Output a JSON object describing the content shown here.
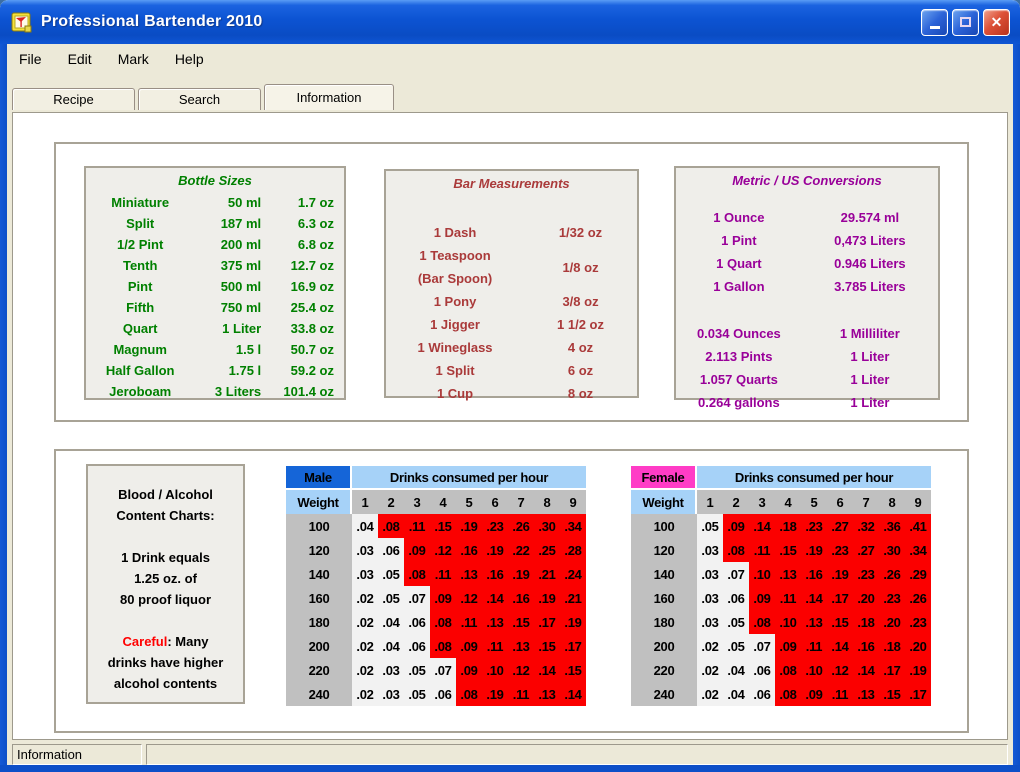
{
  "window": {
    "title": "Professional Bartender 2010",
    "controls": {
      "minimize": "minimize",
      "maximize": "maximize",
      "close": "close"
    }
  },
  "menu_bar": {
    "items": [
      "File",
      "Edit",
      "Mark",
      "Help"
    ]
  },
  "tab_bar": {
    "tabs": [
      {
        "label": "Recipe",
        "active": false
      },
      {
        "label": "Search",
        "active": false
      },
      {
        "label": "Information",
        "active": true
      }
    ]
  },
  "bottle_sizes": {
    "title": "Bottle Sizes",
    "text_color": "#008000",
    "rows": [
      [
        "Miniature",
        "50 ml",
        "1.7 oz"
      ],
      [
        "Split",
        "187 ml",
        "6.3 oz"
      ],
      [
        "1/2 Pint",
        "200 ml",
        "6.8 oz"
      ],
      [
        "Tenth",
        "375 ml",
        "12.7 oz"
      ],
      [
        "Pint",
        "500 ml",
        "16.9 oz"
      ],
      [
        "Fifth",
        "750 ml",
        "25.4 oz"
      ],
      [
        "Quart",
        "1 Liter",
        "33.8 oz"
      ],
      [
        "Magnum",
        "1.5 l",
        "50.7 oz"
      ],
      [
        "Half Gallon",
        "1.75 l",
        "59.2 oz"
      ],
      [
        "Jeroboam",
        "3 Liters",
        "101.4 oz"
      ]
    ]
  },
  "bar_measurements": {
    "title": "Bar Measurements",
    "text_color": "#AA3A3A",
    "rows": [
      [
        "1 Dash",
        "1/32 oz"
      ],
      [
        "1 Teaspoon\n(Bar Spoon)",
        "1/8 oz"
      ],
      [
        "1 Pony",
        "3/8 oz"
      ],
      [
        "1 Jigger",
        "1 1/2 oz"
      ],
      [
        "1 Wineglass",
        "4 oz"
      ],
      [
        "1 Split",
        "6 oz"
      ],
      [
        "1 Cup",
        "8 oz"
      ]
    ]
  },
  "metric_conversions": {
    "title": "Metric / US Conversions",
    "text_color": "#990099",
    "rows_us_to_metric": [
      [
        "1 Ounce",
        "29.574 ml"
      ],
      [
        "1 Pint",
        "0,473 Liters"
      ],
      [
        "1 Quart",
        "0.946 Liters"
      ],
      [
        "1 Gallon",
        "3.785 Liters"
      ]
    ],
    "rows_metric_to_us": [
      [
        "0.034 Ounces",
        "1 Milliliter"
      ],
      [
        "2.113 Pints",
        "1 Liter"
      ],
      [
        "1.057 Quarts",
        "1 Liter"
      ],
      [
        "0.264 gallons",
        "1 Liter"
      ]
    ]
  },
  "bac_info": {
    "heading": "Blood / Alcohol\nContent Charts:",
    "drink_note": "1 Drink equals\n1.25 oz. of\n80 proof liquor",
    "careful_word": "Careful",
    "careful_rest": ": Many\ndrinks have higher\nalcohol contents",
    "careful_color": "#FF0000"
  },
  "bac_tables": {
    "header_label": "Drinks consumed per hour",
    "weight_label": "Weight",
    "hour_columns": [
      "1",
      "2",
      "3",
      "4",
      "5",
      "6",
      "7",
      "8",
      "9"
    ],
    "colors": {
      "male_bg": "#1565D8",
      "female_bg": "#FF3CC6",
      "header_bg": "#A6D2F8",
      "gray_bg": "#C0C0C0",
      "safe_bg": "#F2F2F2",
      "danger_bg": "#FB0000"
    },
    "tables": [
      {
        "gender": "Male",
        "rows": [
          {
            "weight": "100",
            "values": [
              ".04",
              ".08",
              ".11",
              ".15",
              ".19",
              ".23",
              ".26",
              ".30",
              ".34"
            ],
            "red_from": 1
          },
          {
            "weight": "120",
            "values": [
              ".03",
              ".06",
              ".09",
              ".12",
              ".16",
              ".19",
              ".22",
              ".25",
              ".28"
            ],
            "red_from": 2
          },
          {
            "weight": "140",
            "values": [
              ".03",
              ".05",
              ".08",
              ".11",
              ".13",
              ".16",
              ".19",
              ".21",
              ".24"
            ],
            "red_from": 2
          },
          {
            "weight": "160",
            "values": [
              ".02",
              ".05",
              ".07",
              ".09",
              ".12",
              ".14",
              ".16",
              ".19",
              ".21"
            ],
            "red_from": 3
          },
          {
            "weight": "180",
            "values": [
              ".02",
              ".04",
              ".06",
              ".08",
              ".11",
              ".13",
              ".15",
              ".17",
              ".19"
            ],
            "red_from": 3
          },
          {
            "weight": "200",
            "values": [
              ".02",
              ".04",
              ".06",
              ".08",
              ".09",
              ".11",
              ".13",
              ".15",
              ".17"
            ],
            "red_from": 3
          },
          {
            "weight": "220",
            "values": [
              ".02",
              ".03",
              ".05",
              ".07",
              ".09",
              ".10",
              ".12",
              ".14",
              ".15"
            ],
            "red_from": 4
          },
          {
            "weight": "240",
            "values": [
              ".02",
              ".03",
              ".05",
              ".06",
              ".08",
              ".19",
              ".11",
              ".13",
              ".14"
            ],
            "red_from": 4
          }
        ]
      },
      {
        "gender": "Female",
        "rows": [
          {
            "weight": "100",
            "values": [
              ".05",
              ".09",
              ".14",
              ".18",
              ".23",
              ".27",
              ".32",
              ".36",
              ".41"
            ],
            "red_from": 1
          },
          {
            "weight": "120",
            "values": [
              ".03",
              ".08",
              ".11",
              ".15",
              ".19",
              ".23",
              ".27",
              ".30",
              ".34"
            ],
            "red_from": 1
          },
          {
            "weight": "140",
            "values": [
              ".03",
              ".07",
              ".10",
              ".13",
              ".16",
              ".19",
              ".23",
              ".26",
              ".29"
            ],
            "red_from": 2
          },
          {
            "weight": "160",
            "values": [
              ".03",
              ".06",
              ".09",
              ".11",
              ".14",
              ".17",
              ".20",
              ".23",
              ".26"
            ],
            "red_from": 2
          },
          {
            "weight": "180",
            "values": [
              ".03",
              ".05",
              ".08",
              ".10",
              ".13",
              ".15",
              ".18",
              ".20",
              ".23"
            ],
            "red_from": 2
          },
          {
            "weight": "200",
            "values": [
              ".02",
              ".05",
              ".07",
              ".09",
              ".11",
              ".14",
              ".16",
              ".18",
              ".20"
            ],
            "red_from": 3
          },
          {
            "weight": "220",
            "values": [
              ".02",
              ".04",
              ".06",
              ".08",
              ".10",
              ".12",
              ".14",
              ".17",
              ".19"
            ],
            "red_from": 3
          },
          {
            "weight": "240",
            "values": [
              ".02",
              ".04",
              ".06",
              ".08",
              ".09",
              ".11",
              ".13",
              ".15",
              ".17"
            ],
            "red_from": 3
          }
        ]
      }
    ]
  },
  "status_bar": {
    "left": "Information",
    "right": ""
  }
}
